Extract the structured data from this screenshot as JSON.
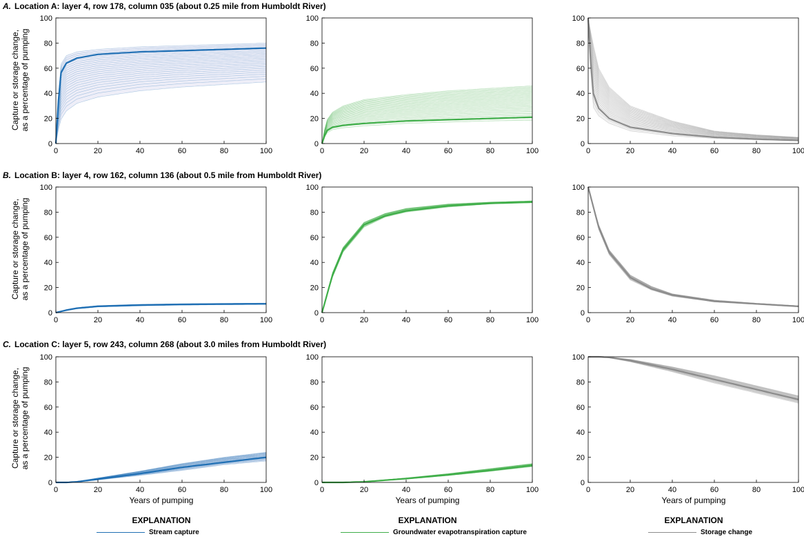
{
  "rows": [
    {
      "letter": "A.",
      "title": "Location A: layer 4, row 178, column 035 (about 0.25 mile from Humboldt River)"
    },
    {
      "letter": "B.",
      "title": "Location B: layer 4, row 162, column 136 (about 0.5 mile from Humboldt River)"
    },
    {
      "letter": "C.",
      "title": "Location C: layer 5, row 243, column 268 (about 3.0 miles from Humboldt River)"
    }
  ],
  "ylabel_line1": "Capture or storage change,",
  "ylabel_line2": "as a percentage of pumping",
  "xlabel": "Years of pumping",
  "legends": [
    {
      "heading": "EXPLANATION",
      "label": "Stream capture",
      "color": "#1f6fb4"
    },
    {
      "heading": "EXPLANATION",
      "label": "Groundwater evapotranspiration capture",
      "color": "#3fae49"
    },
    {
      "heading": "EXPLANATION",
      "label": "Storage change",
      "color": "#8c8c8c"
    }
  ],
  "colors": {
    "stream": "#1f6fb4",
    "et": "#3fae49",
    "storage": "#8c8c8c",
    "stream_band": "#eeeef8",
    "et_band": "#eef7ee",
    "storage_band": "#f0f0f0"
  },
  "chart_data": [
    {
      "type": "line",
      "panel": "A-stream",
      "x": [
        0,
        2,
        5,
        10,
        20,
        40,
        60,
        80,
        100
      ],
      "series": [
        {
          "values": [
            0,
            55,
            64,
            68,
            71,
            73,
            74,
            75,
            76
          ]
        }
      ],
      "envelope": {
        "lower": [
          0,
          18,
          26,
          32,
          37,
          42,
          45,
          47,
          49
        ],
        "upper": [
          0,
          62,
          70,
          73,
          75,
          77,
          78,
          79,
          80
        ]
      },
      "xlim": [
        0,
        100
      ],
      "ylim": [
        0,
        100
      ],
      "xticks": [
        0,
        20,
        40,
        60,
        80,
        100
      ],
      "yticks": [
        0,
        20,
        40,
        60,
        80,
        100
      ]
    },
    {
      "type": "line",
      "panel": "A-et",
      "x": [
        0,
        2,
        5,
        10,
        20,
        40,
        60,
        80,
        100
      ],
      "series": [
        {
          "values": [
            0,
            10,
            13,
            14.5,
            16,
            18,
            19,
            20,
            21
          ]
        }
      ],
      "envelope": {
        "lower": [
          0,
          8,
          11,
          12.5,
          14,
          16,
          17,
          18,
          18.5
        ],
        "upper": [
          0,
          18,
          25,
          30,
          35,
          39,
          42,
          44,
          46
        ]
      },
      "xlim": [
        0,
        100
      ],
      "ylim": [
        0,
        100
      ],
      "xticks": [
        0,
        20,
        40,
        60,
        80,
        100
      ],
      "yticks": [
        0,
        20,
        40,
        60,
        80,
        100
      ]
    },
    {
      "type": "line",
      "panel": "A-storage",
      "x": [
        0,
        2,
        5,
        10,
        20,
        40,
        60,
        80,
        100
      ],
      "series": [
        {
          "values": [
            100,
            42,
            28,
            20,
            13,
            8,
            5,
            3.5,
            2.5
          ]
        }
      ],
      "envelope": {
        "lower": [
          100,
          30,
          22,
          16,
          10,
          6,
          4,
          3,
          2
        ],
        "upper": [
          100,
          82,
          60,
          45,
          30,
          18,
          10,
          7,
          5
        ]
      },
      "xlim": [
        0,
        100
      ],
      "ylim": [
        0,
        100
      ],
      "xticks": [
        0,
        20,
        40,
        60,
        80,
        100
      ],
      "yticks": [
        0,
        20,
        40,
        60,
        80,
        100
      ]
    },
    {
      "type": "line",
      "panel": "B-stream",
      "x": [
        0,
        5,
        10,
        20,
        40,
        60,
        80,
        100
      ],
      "series": [
        {
          "values": [
            0,
            2,
            3.5,
            5,
            6,
            6.5,
            6.8,
            7
          ]
        }
      ],
      "envelope": {
        "lower": [
          0,
          1.6,
          3,
          4.5,
          5.4,
          6,
          6.3,
          6.5
        ],
        "upper": [
          0,
          2.5,
          4,
          5.6,
          6.6,
          7.1,
          7.4,
          7.6
        ]
      },
      "xlim": [
        0,
        100
      ],
      "ylim": [
        0,
        100
      ],
      "xticks": [
        0,
        20,
        40,
        60,
        80,
        100
      ],
      "yticks": [
        0,
        20,
        40,
        60,
        80,
        100
      ]
    },
    {
      "type": "line",
      "panel": "B-et",
      "x": [
        0,
        5,
        10,
        20,
        30,
        40,
        60,
        80,
        100
      ],
      "series": [
        {
          "values": [
            0,
            30,
            50,
            70,
            77,
            81,
            85,
            87,
            88
          ]
        }
      ],
      "envelope": {
        "lower": [
          0,
          28,
          48,
          68,
          76,
          80,
          84,
          86.5,
          87.5
        ],
        "upper": [
          0,
          32,
          52,
          72,
          79,
          83,
          86.5,
          88,
          89
        ]
      },
      "xlim": [
        0,
        100
      ],
      "ylim": [
        0,
        100
      ],
      "xticks": [
        0,
        20,
        40,
        60,
        80,
        100
      ],
      "yticks": [
        0,
        20,
        40,
        60,
        80,
        100
      ]
    },
    {
      "type": "line",
      "panel": "B-storage",
      "x": [
        0,
        5,
        10,
        20,
        30,
        40,
        60,
        80,
        100
      ],
      "series": [
        {
          "values": [
            100,
            68,
            48,
            28,
            19,
            14,
            9,
            7,
            5
          ]
        }
      ],
      "envelope": {
        "lower": [
          100,
          66,
          46,
          26,
          18,
          13,
          8.5,
          6.5,
          4.5
        ],
        "upper": [
          100,
          70,
          50,
          30,
          21,
          15,
          10,
          7.5,
          5.5
        ]
      },
      "xlim": [
        0,
        100
      ],
      "ylim": [
        0,
        100
      ],
      "xticks": [
        0,
        20,
        40,
        60,
        80,
        100
      ],
      "yticks": [
        0,
        20,
        40,
        60,
        80,
        100
      ]
    },
    {
      "type": "line",
      "panel": "C-stream",
      "x": [
        0,
        5,
        10,
        20,
        40,
        60,
        80,
        100
      ],
      "series": [
        {
          "values": [
            0,
            0,
            0.5,
            2.5,
            7,
            12,
            16,
            20
          ]
        }
      ],
      "envelope": {
        "lower": [
          0,
          0,
          0.3,
          2,
          5.5,
          9.5,
          14,
          17
        ],
        "upper": [
          0,
          0,
          0.8,
          3.5,
          9,
          15,
          20,
          24
        ]
      },
      "xlim": [
        0,
        100
      ],
      "ylim": [
        0,
        100
      ],
      "xticks": [
        0,
        20,
        40,
        60,
        80,
        100
      ],
      "yticks": [
        0,
        20,
        40,
        60,
        80,
        100
      ]
    },
    {
      "type": "line",
      "panel": "C-et",
      "x": [
        0,
        5,
        10,
        20,
        40,
        60,
        80,
        100
      ],
      "series": [
        {
          "values": [
            0,
            0,
            0,
            0.5,
            3,
            6,
            9.5,
            13.5
          ]
        }
      ],
      "envelope": {
        "lower": [
          0,
          0,
          0,
          0.4,
          2.6,
          5.4,
          8.8,
          12.5
        ],
        "upper": [
          0,
          0,
          0,
          0.7,
          3.6,
          7,
          11,
          15
        ]
      },
      "xlim": [
        0,
        100
      ],
      "ylim": [
        0,
        100
      ],
      "xticks": [
        0,
        20,
        40,
        60,
        80,
        100
      ],
      "yticks": [
        0,
        20,
        40,
        60,
        80,
        100
      ]
    },
    {
      "type": "line",
      "panel": "C-storage",
      "x": [
        0,
        5,
        10,
        20,
        40,
        60,
        80,
        100
      ],
      "series": [
        {
          "values": [
            100,
            100,
            99.5,
            97,
            90,
            82,
            74,
            66
          ]
        }
      ],
      "envelope": {
        "lower": [
          100,
          100,
          99.2,
          96,
          88,
          79,
          71,
          63
        ],
        "upper": [
          100,
          100,
          99.8,
          98,
          92,
          85,
          77,
          69
        ]
      },
      "xlim": [
        0,
        100
      ],
      "ylim": [
        0,
        100
      ],
      "xticks": [
        0,
        20,
        40,
        60,
        80,
        100
      ],
      "yticks": [
        0,
        20,
        40,
        60,
        80,
        100
      ]
    }
  ]
}
